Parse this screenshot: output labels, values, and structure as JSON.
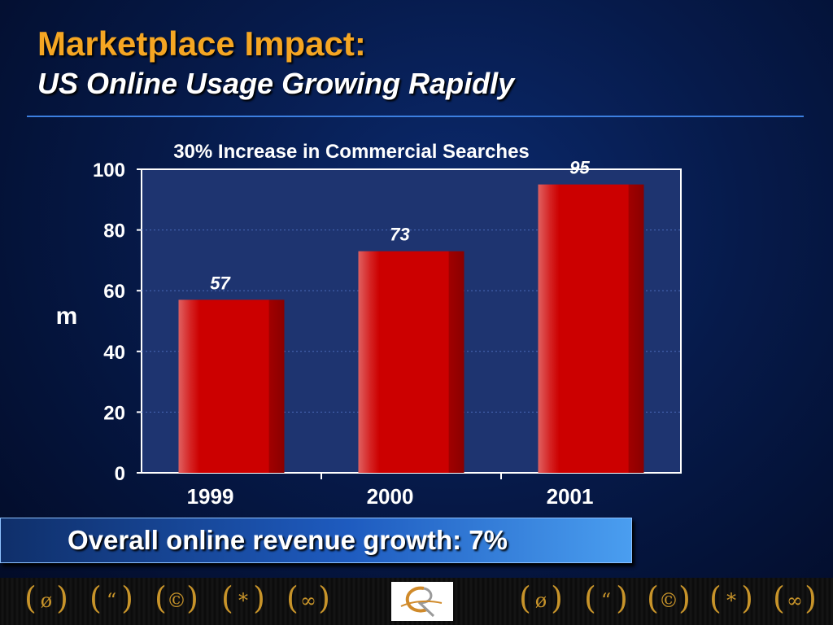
{
  "slide": {
    "title": "Marketplace Impact:",
    "subtitle": "US Online Usage Growing Rapidly",
    "banner": "Overall online revenue growth: 7%"
  },
  "footer": {
    "symbols": [
      "ø",
      "“",
      "©",
      "*",
      "∞",
      "ø",
      "“",
      "©",
      "*",
      "∞"
    ],
    "logo_icon": "rx-logo-icon"
  },
  "colors": {
    "title": "#f5a623",
    "bar": "#cc0000",
    "plot_bg": "#1e3470",
    "banner": "#1e5bbf"
  },
  "chart_data": {
    "type": "bar",
    "title": "30% Increase in Commercial Searches",
    "categories": [
      "1999",
      "2000",
      "2001"
    ],
    "values": [
      57,
      73,
      95
    ],
    "data_labels": [
      "57",
      "73",
      "95"
    ],
    "ylabel": "m",
    "xlabel": "",
    "ylim": [
      0,
      100
    ],
    "yticks": [
      0,
      20,
      40,
      60,
      80,
      100
    ],
    "grid": true,
    "legend": "none"
  }
}
